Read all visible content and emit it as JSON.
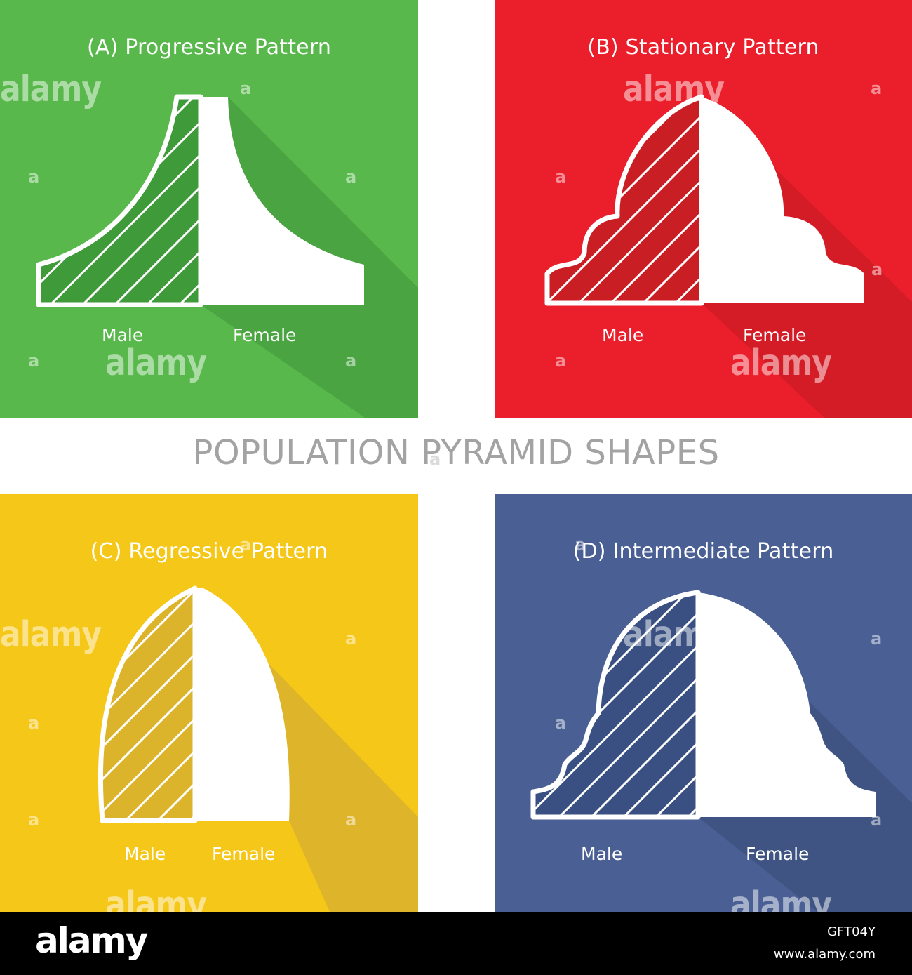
{
  "main_title": "POPULATION PYRAMID SHAPES",
  "panels": [
    {
      "title": "(A) Progressive Pattern",
      "male_label": "Male",
      "female_label": "Female",
      "background": "#58b84b",
      "shadow": "#4aa442",
      "hatch_fill": "#3f9a3a"
    },
    {
      "title": "(B) Stationary Pattern",
      "male_label": "Male",
      "female_label": "Female",
      "background": "#ea1f2b",
      "shadow": "#d41c26",
      "hatch_fill": "#c81e24"
    },
    {
      "title": "(C) Regressive Pattern",
      "male_label": "Male",
      "female_label": "Female",
      "background": "#f5c719",
      "shadow": "#ddb42a",
      "hatch_fill": "#dcb42c"
    },
    {
      "title": "(D) Intermediate Pattern",
      "male_label": "Male",
      "female_label": "Female",
      "background": "#4a6094",
      "shadow": "#3f5483",
      "hatch_fill": "#3a5082"
    }
  ],
  "watermark": {
    "word": "alamy",
    "letter": "a"
  },
  "footer": {
    "logo": "alamy",
    "image_id": "GFT04Y",
    "url": "www.alamy.com"
  }
}
